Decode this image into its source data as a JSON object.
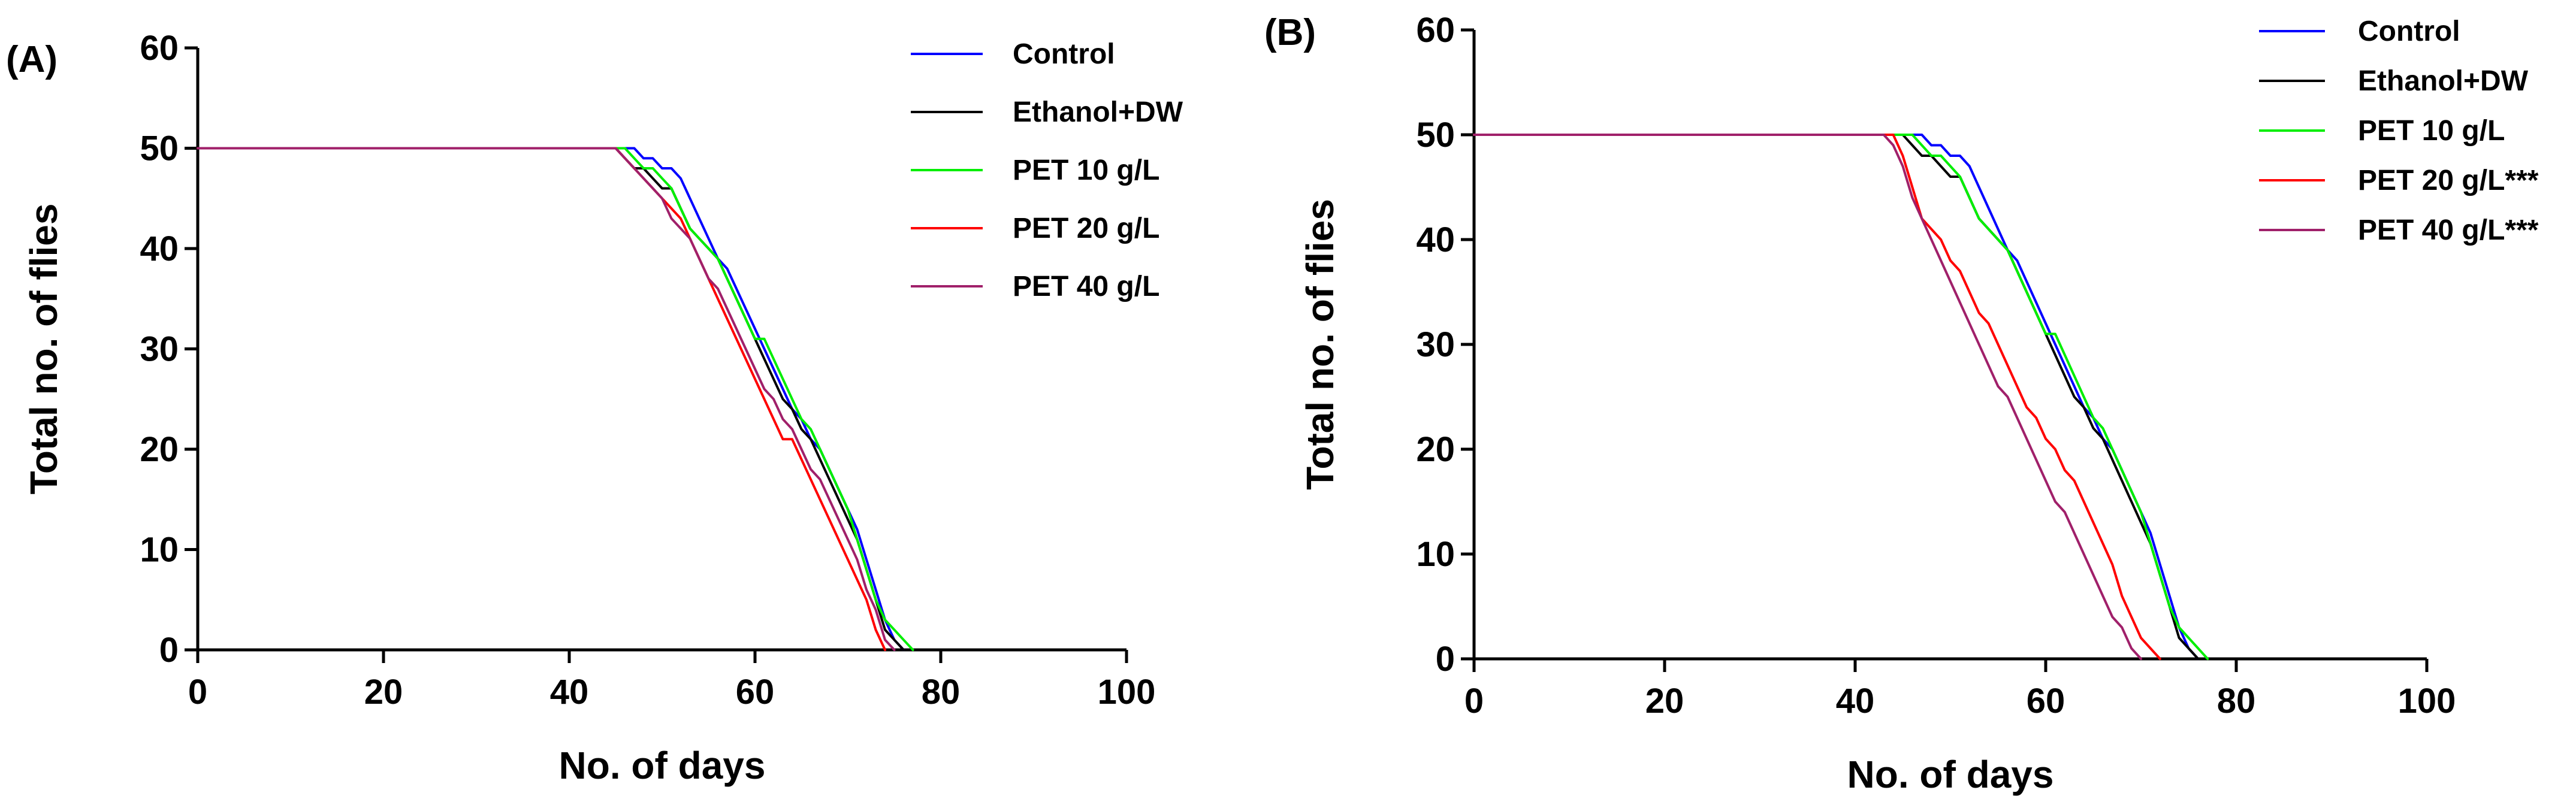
{
  "chart_data": [
    {
      "panel_label": "(A)",
      "type": "line",
      "xlabel": "No. of days",
      "ylabel": "Total no. of flies",
      "xlim": [
        0,
        100
      ],
      "ylim": [
        0,
        60
      ],
      "xticks": [
        0,
        20,
        40,
        60,
        80,
        100
      ],
      "yticks": [
        0,
        10,
        20,
        30,
        40,
        50,
        60
      ],
      "legend_position": "top-right",
      "series": [
        {
          "name": "Control",
          "color": "#0000ff",
          "x": [
            0,
            45,
            47,
            48,
            49,
            50,
            51,
            52,
            53,
            54,
            55,
            56,
            57,
            58,
            59,
            60,
            61,
            62,
            63,
            64,
            65,
            66,
            67,
            68,
            69,
            70,
            71,
            72,
            73,
            74,
            75,
            76
          ],
          "y": [
            50,
            50,
            50,
            49,
            49,
            48,
            48,
            47,
            45,
            43,
            41,
            39,
            38,
            36,
            34,
            32,
            30,
            28,
            26,
            24,
            23,
            21,
            20,
            18,
            16,
            14,
            12,
            9,
            6,
            3,
            1,
            0
          ]
        },
        {
          "name": "Ethanol+DW",
          "color": "#000000",
          "x": [
            0,
            45,
            46,
            47,
            48,
            49,
            50,
            51,
            52,
            53,
            54,
            55,
            56,
            57,
            58,
            59,
            60,
            61,
            62,
            63,
            64,
            65,
            66,
            67,
            68,
            69,
            70,
            71,
            72,
            73,
            74,
            75,
            76
          ],
          "y": [
            50,
            50,
            49,
            48,
            48,
            47,
            46,
            46,
            44,
            42,
            41,
            40,
            39,
            37,
            35,
            33,
            31,
            29,
            27,
            25,
            24,
            22,
            21,
            19,
            17,
            15,
            13,
            11,
            8,
            5,
            2,
            1,
            0
          ]
        },
        {
          "name": "PET 10 g/L",
          "color": "#00ee00",
          "x": [
            0,
            45,
            46,
            47,
            48,
            49,
            50,
            51,
            52,
            53,
            54,
            55,
            56,
            57,
            58,
            59,
            60,
            61,
            62,
            63,
            64,
            65,
            66,
            67,
            68,
            69,
            70,
            71,
            72,
            73,
            74,
            75,
            76,
            77
          ],
          "y": [
            50,
            50,
            50,
            49,
            48,
            48,
            47,
            46,
            44,
            42,
            41,
            40,
            39,
            37,
            35,
            33,
            31,
            31,
            29,
            27,
            25,
            23,
            22,
            20,
            18,
            16,
            14,
            11,
            8,
            5,
            3,
            2,
            1,
            0
          ]
        },
        {
          "name": "PET 20 g/L",
          "color": "#ff0000",
          "x": [
            0,
            45,
            46,
            47,
            48,
            49,
            50,
            51,
            52,
            53,
            54,
            55,
            56,
            57,
            58,
            59,
            60,
            61,
            62,
            63,
            64,
            65,
            66,
            67,
            68,
            69,
            70,
            71,
            72,
            73,
            74
          ],
          "y": [
            50,
            50,
            49,
            48,
            47,
            46,
            45,
            44,
            43,
            41,
            39,
            37,
            35,
            33,
            31,
            29,
            27,
            25,
            23,
            21,
            21,
            19,
            17,
            15,
            13,
            11,
            9,
            7,
            5,
            2,
            0
          ]
        },
        {
          "name": "PET 40 g/L",
          "color": "#a0206a",
          "x": [
            0,
            45,
            46,
            47,
            48,
            49,
            50,
            51,
            52,
            53,
            54,
            55,
            56,
            57,
            58,
            59,
            60,
            61,
            62,
            63,
            64,
            65,
            66,
            67,
            68,
            69,
            70,
            71,
            72,
            73,
            74,
            75
          ],
          "y": [
            50,
            50,
            49,
            48,
            47,
            46,
            45,
            43,
            42,
            41,
            39,
            37,
            36,
            34,
            32,
            30,
            28,
            26,
            25,
            23,
            22,
            20,
            18,
            17,
            15,
            13,
            11,
            9,
            6,
            4,
            1,
            0
          ]
        }
      ]
    },
    {
      "panel_label": "(B)",
      "type": "line",
      "xlabel": "No. of days",
      "ylabel": "Total no. of flies",
      "xlim": [
        0,
        100
      ],
      "ylim": [
        0,
        60
      ],
      "xticks": [
        0,
        20,
        40,
        60,
        80,
        100
      ],
      "yticks": [
        0,
        10,
        20,
        30,
        40,
        50,
        60
      ],
      "legend_position": "top-right",
      "series": [
        {
          "name": "Control",
          "color": "#0000ff",
          "x": [
            0,
            45,
            47,
            48,
            49,
            50,
            51,
            52,
            53,
            54,
            55,
            56,
            57,
            58,
            59,
            60,
            61,
            62,
            63,
            64,
            65,
            66,
            67,
            68,
            69,
            70,
            71,
            72,
            73,
            74,
            75,
            76
          ],
          "y": [
            50,
            50,
            50,
            49,
            49,
            48,
            48,
            47,
            45,
            43,
            41,
            39,
            38,
            36,
            34,
            32,
            30,
            28,
            26,
            24,
            23,
            21,
            20,
            18,
            16,
            14,
            12,
            9,
            6,
            3,
            1,
            0
          ]
        },
        {
          "name": "Ethanol+DW",
          "color": "#000000",
          "x": [
            0,
            45,
            46,
            47,
            48,
            49,
            50,
            51,
            52,
            53,
            54,
            55,
            56,
            57,
            58,
            59,
            60,
            61,
            62,
            63,
            64,
            65,
            66,
            67,
            68,
            69,
            70,
            71,
            72,
            73,
            74,
            75,
            76
          ],
          "y": [
            50,
            50,
            49,
            48,
            48,
            47,
            46,
            46,
            44,
            42,
            41,
            40,
            39,
            37,
            35,
            33,
            31,
            29,
            27,
            25,
            24,
            22,
            21,
            19,
            17,
            15,
            13,
            11,
            8,
            5,
            2,
            1,
            0
          ]
        },
        {
          "name": "PET 10 g/L",
          "color": "#00ee00",
          "x": [
            0,
            45,
            46,
            47,
            48,
            49,
            50,
            51,
            52,
            53,
            54,
            55,
            56,
            57,
            58,
            59,
            60,
            61,
            62,
            63,
            64,
            65,
            66,
            67,
            68,
            69,
            70,
            71,
            72,
            73,
            74,
            75,
            76,
            77
          ],
          "y": [
            50,
            50,
            50,
            49,
            48,
            48,
            47,
            46,
            44,
            42,
            41,
            40,
            39,
            37,
            35,
            33,
            31,
            31,
            29,
            27,
            25,
            23,
            22,
            20,
            18,
            16,
            14,
            11,
            8,
            5,
            3,
            2,
            1,
            0
          ]
        },
        {
          "name": "PET 20 g/L***",
          "color": "#ff0000",
          "x": [
            0,
            44,
            45,
            46,
            47,
            48,
            49,
            50,
            51,
            52,
            53,
            54,
            55,
            56,
            57,
            58,
            59,
            60,
            61,
            62,
            63,
            64,
            65,
            66,
            67,
            68,
            69,
            70,
            71,
            72
          ],
          "y": [
            50,
            50,
            48,
            45,
            42,
            41,
            40,
            38,
            37,
            35,
            33,
            32,
            30,
            28,
            26,
            24,
            23,
            21,
            20,
            18,
            17,
            15,
            13,
            11,
            9,
            6,
            4,
            2,
            1,
            0
          ]
        },
        {
          "name": "PET 40 g/L***",
          "color": "#a0206a",
          "x": [
            0,
            43,
            44,
            45,
            46,
            47,
            48,
            49,
            50,
            51,
            52,
            53,
            54,
            55,
            56,
            57,
            58,
            59,
            60,
            61,
            62,
            63,
            64,
            65,
            66,
            67,
            68,
            69,
            70
          ],
          "y": [
            50,
            50,
            49,
            47,
            44,
            42,
            40,
            38,
            36,
            34,
            32,
            30,
            28,
            26,
            25,
            23,
            21,
            19,
            17,
            15,
            14,
            12,
            10,
            8,
            6,
            4,
            3,
            1,
            0
          ]
        }
      ]
    }
  ]
}
